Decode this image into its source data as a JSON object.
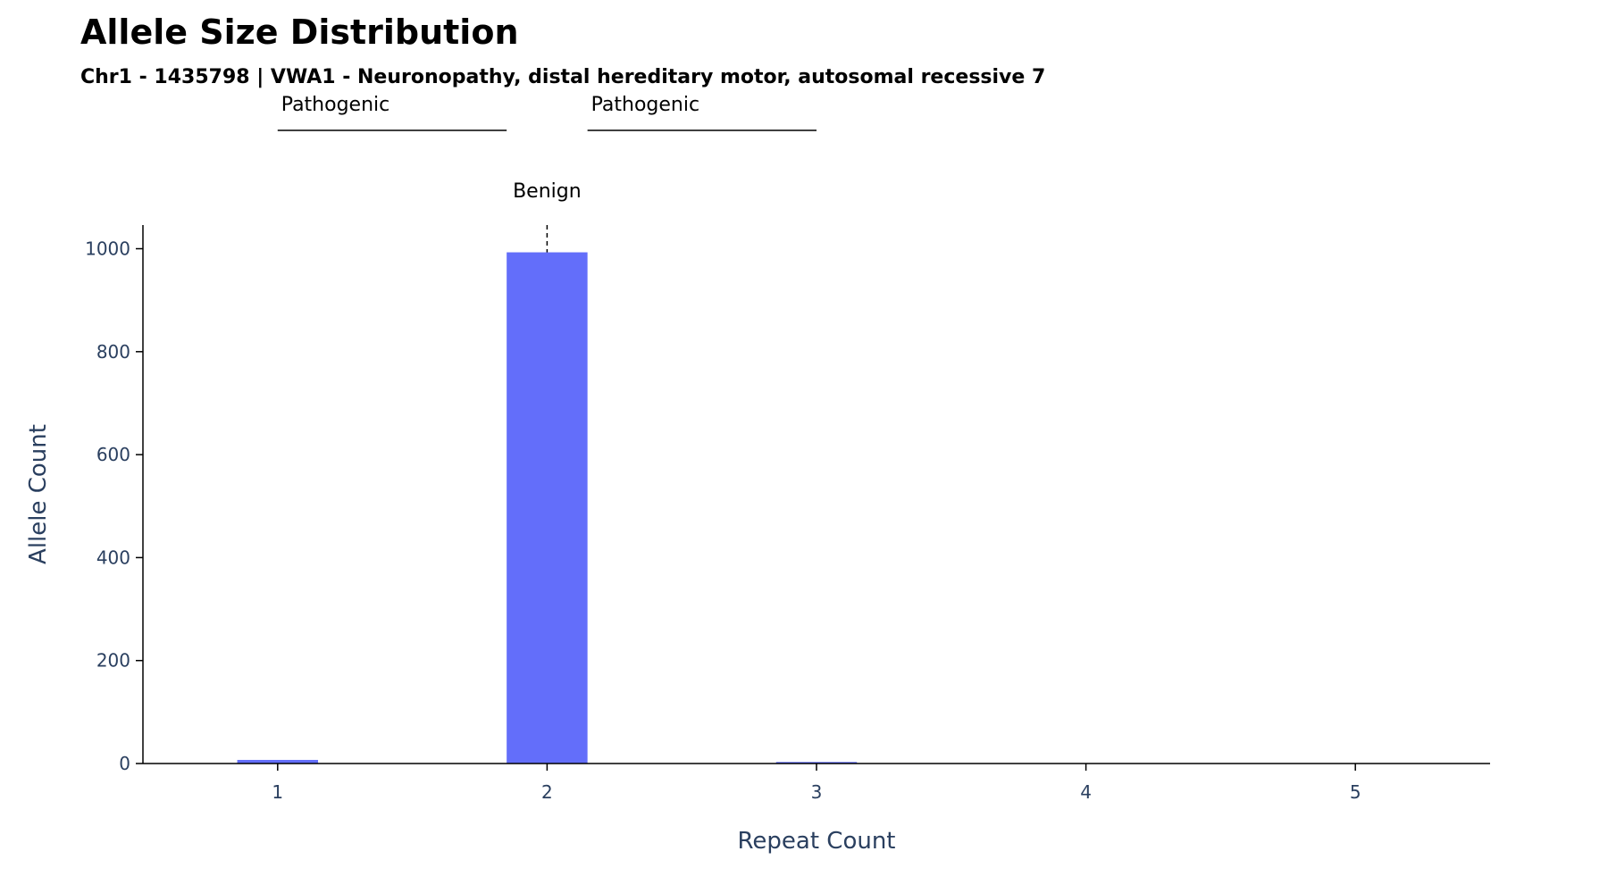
{
  "chart_data": {
    "type": "bar",
    "title": "Allele Size Distribution",
    "subtitle": "Chr1 - 1435798 | VWA1 - Neuronopathy, distal hereditary motor, autosomal recessive 7",
    "xlabel": "Repeat Count",
    "ylabel": "Allele Count",
    "x": [
      1,
      2,
      3,
      4,
      5
    ],
    "values": [
      7,
      993,
      3,
      0,
      0
    ],
    "xlim": [
      0.5,
      5.5
    ],
    "ylim": [
      0,
      1046
    ],
    "yticks": [
      0,
      200,
      400,
      600,
      800,
      1000
    ],
    "xticks": [
      1,
      2,
      3,
      4,
      5
    ],
    "bar_color": "#636efa",
    "grid": false,
    "annotations": {
      "benign": {
        "label": "Benign",
        "x": 2
      },
      "pathogenic_ranges": [
        {
          "label": "Pathogenic",
          "from": 1,
          "to": 1.85
        },
        {
          "label": "Pathogenic",
          "from": 2.15,
          "to": 3
        }
      ]
    }
  }
}
